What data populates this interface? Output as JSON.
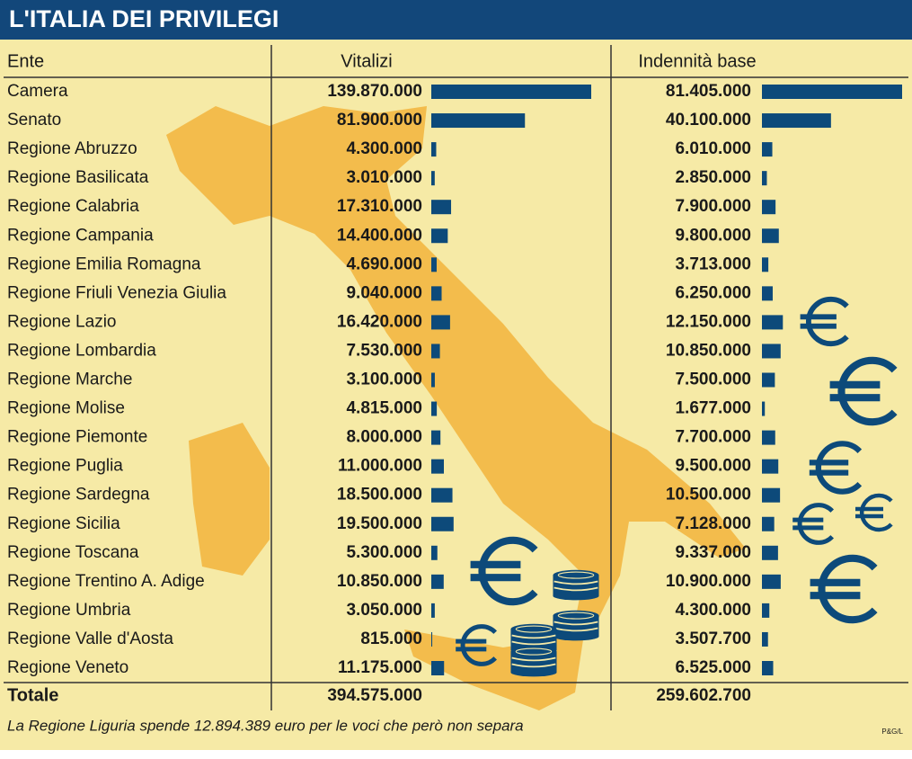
{
  "chart_data": {
    "type": "table-bar",
    "title": "L'ITALIA DEI PRIVILEGI",
    "row_header": "Ente",
    "categories": [
      "Camera",
      "Senato",
      "Regione Abruzzo",
      "Regione Basilicata",
      "Regione Calabria",
      "Regione Campania",
      "Regione Emilia Romagna",
      "Regione Friuli Venezia Giulia",
      "Regione Lazio",
      "Regione Lombardia",
      "Regione Marche",
      "Regione Molise",
      "Regione Piemonte",
      "Regione Puglia",
      "Regione Sardegna",
      "Regione Sicilia",
      "Regione Toscana",
      "Regione Trentino A. Adige",
      "Regione Umbria",
      "Regione Valle d'Aosta",
      "Regione Veneto"
    ],
    "series": [
      {
        "name": "Vitalizi",
        "color": "#0d4a7a",
        "values": [
          139870000,
          81900000,
          4300000,
          3010000,
          17310000,
          14400000,
          4690000,
          9040000,
          16420000,
          7530000,
          3100000,
          4815000,
          8000000,
          11000000,
          18500000,
          19500000,
          5300000,
          10850000,
          3050000,
          815000,
          11175000
        ],
        "value_labels": [
          "139.870.000",
          "81.900.000",
          "4.300.000",
          "3.010.000",
          "17.310.000",
          "14.400.000",
          "4.690.000",
          "9.040.000",
          "16.420.000",
          "7.530.000",
          "3.100.000",
          "4.815.000",
          "8.000.000",
          "11.000.000",
          "18.500.000",
          "19.500.000",
          "5.300.000",
          "10.850.000",
          "3.050.000",
          "815.000",
          "11.175.000"
        ],
        "total": {
          "value": 394575000,
          "label": "394.575.000"
        }
      },
      {
        "name": "Indennità base",
        "color": "#0d4a7a",
        "values": [
          81405000,
          40100000,
          6010000,
          2850000,
          7900000,
          9800000,
          3713000,
          6250000,
          12150000,
          10850000,
          7500000,
          1677000,
          7700000,
          9500000,
          10500000,
          7128000,
          9337000,
          10900000,
          4300000,
          3507700,
          6525000
        ],
        "value_labels": [
          "81.405.000",
          "40.100.000",
          "6.010.000",
          "2.850.000",
          "7.900.000",
          "9.800.000",
          "3.713.000",
          "6.250.000",
          "12.150.000",
          "10.850.000",
          "7.500.000",
          "1.677.000",
          "7.700.000",
          "9.500.000",
          "10.500.000",
          "7.128.000",
          "9.337.000",
          "10.900.000",
          "4.300.000",
          "3.507.700",
          "6.525.000"
        ],
        "total": {
          "value": 259602700,
          "label": "259.602.700"
        }
      }
    ],
    "total_row": "Totale",
    "note": "La Regione Liguria spende 12.894.389 euro per le voci che però non separa",
    "credit": "P&G/L"
  }
}
